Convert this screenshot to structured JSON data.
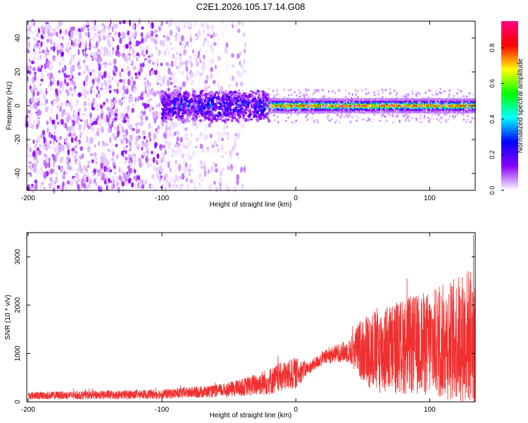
{
  "title": "C2E1.2026.105.17.14.G08",
  "chart_data": [
    {
      "type": "heatmap",
      "xlabel": "Height of straight line (km)",
      "ylabel": "Frequency (Hz)",
      "xlim": [
        -201,
        134
      ],
      "ylim": [
        -50,
        50
      ],
      "xticks": [
        -200,
        -100,
        0,
        100
      ],
      "yticks": [
        -40,
        -20,
        0,
        20,
        40
      ],
      "colorbar": {
        "label": "Normalized spectral amplitude",
        "range": [
          0,
          0.95
        ],
        "ticks": [
          0.0,
          0.2,
          0.4,
          0.6,
          0.8
        ],
        "colormap": [
          "#ffffff",
          "#8a00ff",
          "#0000ff",
          "#00ffff",
          "#00ff00",
          "#ffff00",
          "#ff0000",
          "#ff0080"
        ]
      },
      "regions": [
        {
          "x_range": [
            -200,
            -100
          ],
          "freq_range": [
            -50,
            50
          ],
          "description": "broadband noise",
          "amplitude": 0.05
        },
        {
          "x_range": [
            -100,
            -20
          ],
          "freq_range": [
            -10,
            10
          ],
          "description": "noisy signal onset",
          "amplitude": 0.3
        },
        {
          "x_range": [
            -20,
            134
          ],
          "center_freq_hz": 0,
          "half_width_hz": 4,
          "description": "stable tone",
          "amplitude": 0.9
        }
      ]
    },
    {
      "type": "line",
      "xlabel": "Height of straight line (km)",
      "ylabel": "SNR (10 * v/v)",
      "xlim": [
        -201,
        134
      ],
      "ylim": [
        0,
        3500
      ],
      "xticks": [
        -200,
        -100,
        0,
        100
      ],
      "yticks": [
        0,
        1000,
        2000,
        3000
      ],
      "series": [
        {
          "name": "SNR",
          "color": "#f03030",
          "x": [
            -200,
            -150,
            -100,
            -60,
            -40,
            -20,
            -10,
            0,
            10,
            20,
            30,
            40,
            50,
            60,
            80,
            100,
            120,
            134
          ],
          "mean": [
            130,
            140,
            160,
            220,
            300,
            420,
            520,
            590,
            700,
            900,
            1000,
            1050,
            1100,
            1050,
            1150,
            1200,
            1300,
            1400
          ],
          "spread": [
            80,
            90,
            100,
            130,
            180,
            280,
            320,
            320,
            120,
            150,
            180,
            250,
            700,
            900,
            1000,
            1100,
            1300,
            1500
          ],
          "peak": 3450
        }
      ]
    }
  ]
}
